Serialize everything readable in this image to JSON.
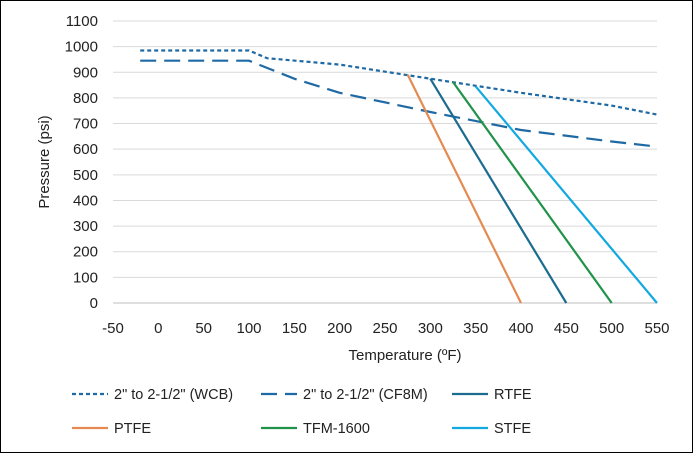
{
  "chart_data": {
    "type": "line",
    "title": "",
    "xlabel": "Temperature (ºF)",
    "ylabel": "Pressure (psi)",
    "xlim": [
      -50,
      550
    ],
    "ylim": [
      0,
      1100
    ],
    "xticks": [
      "-50",
      "0",
      "50",
      "100",
      "150",
      "200",
      "250",
      "300",
      "350",
      "400",
      "450",
      "500",
      "550"
    ],
    "yticks": [
      "0",
      "100",
      "200",
      "300",
      "400",
      "500",
      "600",
      "700",
      "800",
      "900",
      "1000",
      "1100"
    ],
    "grid": "horizontal",
    "legend_position": "bottom",
    "series": [
      {
        "name": "2\" to 2-1/2\" (WCB)",
        "color": "#1f6aa5",
        "dash": "dotted",
        "points": [
          [
            -20,
            985
          ],
          [
            100,
            985
          ],
          [
            120,
            955
          ],
          [
            200,
            930
          ],
          [
            300,
            875
          ],
          [
            400,
            820
          ],
          [
            500,
            770
          ],
          [
            550,
            735
          ]
        ]
      },
      {
        "name": "2\" to 2-1/2\" (CF8M)",
        "color": "#1f6aa5",
        "dash": "dashed",
        "points": [
          [
            -20,
            945
          ],
          [
            100,
            945
          ],
          [
            150,
            875
          ],
          [
            200,
            820
          ],
          [
            300,
            745
          ],
          [
            400,
            675
          ],
          [
            500,
            630
          ],
          [
            550,
            610
          ]
        ]
      },
      {
        "name": "RTFE",
        "color": "#1b6c8f",
        "dash": "solid",
        "points": [
          [
            300,
            875
          ],
          [
            450,
            0
          ]
        ]
      },
      {
        "name": "PTFE",
        "color": "#e58a52",
        "dash": "solid",
        "points": [
          [
            275,
            890
          ],
          [
            400,
            0
          ]
        ]
      },
      {
        "name": "TFM-1600",
        "color": "#20924a",
        "dash": "solid",
        "points": [
          [
            325,
            862
          ],
          [
            500,
            0
          ]
        ]
      },
      {
        "name": "STFE",
        "color": "#12a8e0",
        "dash": "solid",
        "points": [
          [
            350,
            845
          ],
          [
            550,
            0
          ]
        ]
      }
    ]
  }
}
